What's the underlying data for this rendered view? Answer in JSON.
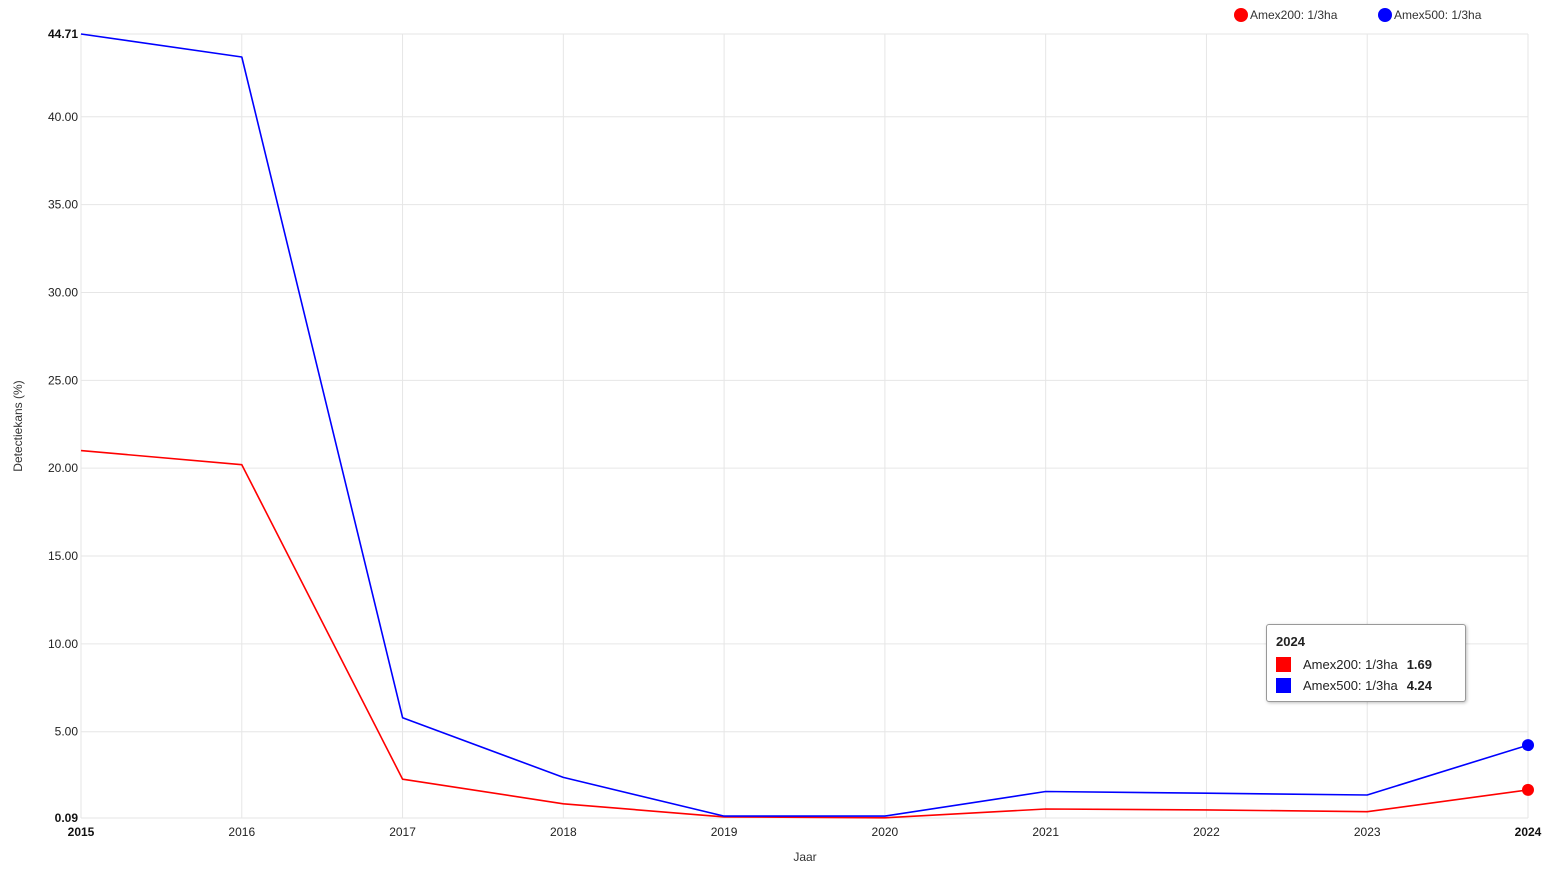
{
  "chart_data": {
    "type": "line",
    "title": "",
    "xlabel": "Jaar",
    "ylabel": "Detectiekans (%)",
    "x": [
      2015,
      2016,
      2017,
      2018,
      2019,
      2020,
      2021,
      2022,
      2023,
      2024
    ],
    "x_tick_labels": [
      "2015",
      "2016",
      "2017",
      "2018",
      "2019",
      "2020",
      "2021",
      "2022",
      "2023",
      "2024"
    ],
    "ylim": [
      0.09,
      44.71
    ],
    "y_tick_labels": [
      "0.09",
      "5.00",
      "10.00",
      "15.00",
      "20.00",
      "25.00",
      "30.00",
      "35.00",
      "40.00",
      "44.71"
    ],
    "y_ticks": [
      0.09,
      5,
      10,
      15,
      20,
      25,
      30,
      35,
      40,
      44.71
    ],
    "grid": true,
    "legend_position": "top-right",
    "series": [
      {
        "name": "Amex200: 1/3ha",
        "color": "#ff0000",
        "values": [
          21.0,
          20.2,
          2.3,
          0.9,
          0.15,
          0.1,
          0.6,
          0.55,
          0.45,
          1.69
        ]
      },
      {
        "name": "Amex500: 1/3ha",
        "color": "#0000ff",
        "values": [
          44.71,
          43.4,
          5.8,
          2.4,
          0.2,
          0.2,
          1.6,
          1.5,
          1.4,
          4.24
        ]
      }
    ],
    "tooltip": {
      "title": "2024",
      "rows": [
        {
          "name": "Amex200: 1/3ha",
          "value": "1.69",
          "color": "#ff0000"
        },
        {
          "name": "Amex500: 1/3ha",
          "value": "4.24",
          "color": "#0000ff"
        }
      ]
    }
  }
}
